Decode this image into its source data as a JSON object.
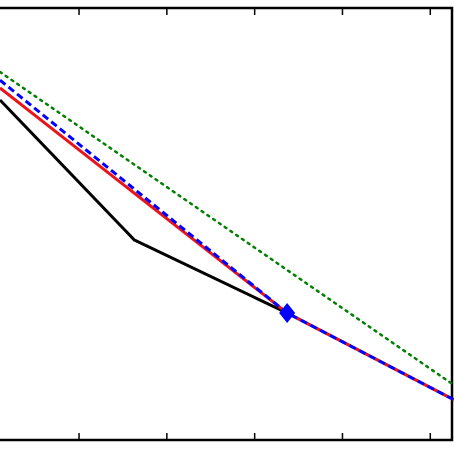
{
  "chart_data": {
    "type": "line",
    "xlim": [
      0.1,
      5.27
    ],
    "xticks": [
      1,
      2,
      3,
      4,
      5
    ],
    "ylim": [
      0,
      10
    ],
    "series": [
      {
        "color": "#000000",
        "style": "solid",
        "x": [
          0.1,
          1.63,
          3.37,
          5.27
        ],
        "values": [
          7.87,
          4.63,
          2.94,
          0.93
        ]
      },
      {
        "color": "#e8141a",
        "style": "solid",
        "x": [
          0.1,
          3.37,
          5.27
        ],
        "values": [
          8.15,
          2.94,
          0.93
        ]
      },
      {
        "color": "#0000ff",
        "style": "dashed",
        "x": [
          0.1,
          3.37,
          5.27
        ],
        "values": [
          8.33,
          2.94,
          0.93
        ]
      },
      {
        "color": "#008000",
        "style": "dotted",
        "x": [
          0.1,
          5.27
        ],
        "values": [
          8.52,
          1.27
        ]
      },
      {
        "color": "#0000ff",
        "style": "marker",
        "marker": "diamond",
        "x": [
          3.37
        ],
        "values": [
          2.94
        ]
      }
    ]
  }
}
